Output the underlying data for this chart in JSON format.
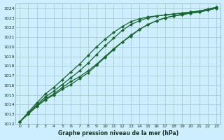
{
  "title": "Graphe pression niveau de la mer (hPa)",
  "bg_color": "#cceeff",
  "grid_color": "#aacccc",
  "line_color": "#1a6630",
  "xlim": [
    -0.5,
    23.5
  ],
  "ylim": [
    1012,
    1024.5
  ],
  "yticks": [
    1012,
    1013,
    1014,
    1015,
    1016,
    1017,
    1018,
    1019,
    1020,
    1021,
    1022,
    1023,
    1024
  ],
  "xticks": [
    0,
    1,
    2,
    3,
    4,
    5,
    6,
    7,
    8,
    9,
    10,
    11,
    12,
    13,
    14,
    15,
    16,
    17,
    18,
    19,
    20,
    21,
    22,
    23
  ],
  "lines": [
    [
      1012.2,
      1013.1,
      1013.9,
      1014.6,
      1015.1,
      1015.8,
      1016.4,
      1016.9,
      1017.5,
      1018.2,
      1019.0,
      1019.8,
      1020.5,
      1021.2,
      1021.8,
      1022.3,
      1022.7,
      1023.0,
      1023.2,
      1023.4,
      1023.5,
      1023.6,
      1023.8,
      1024.0
    ],
    [
      1012.2,
      1013.0,
      1013.8,
      1014.5,
      1015.0,
      1015.6,
      1016.1,
      1016.7,
      1017.3,
      1018.1,
      1018.9,
      1019.7,
      1020.5,
      1021.1,
      1021.8,
      1022.3,
      1022.7,
      1023.0,
      1023.2,
      1023.3,
      1023.5,
      1023.6,
      1023.8,
      1024.0
    ],
    [
      1012.2,
      1013.1,
      1014.0,
      1014.8,
      1015.4,
      1016.1,
      1016.8,
      1017.5,
      1018.3,
      1019.2,
      1020.1,
      1020.9,
      1021.7,
      1022.3,
      1022.7,
      1023.0,
      1023.2,
      1023.3,
      1023.4,
      1023.5,
      1023.6,
      1023.7,
      1023.9,
      1024.1
    ],
    [
      1012.2,
      1013.2,
      1014.2,
      1015.1,
      1015.8,
      1016.6,
      1017.4,
      1018.2,
      1019.1,
      1020.0,
      1020.8,
      1021.5,
      1022.1,
      1022.6,
      1022.9,
      1023.1,
      1023.2,
      1023.3,
      1023.4,
      1023.5,
      1023.6,
      1023.7,
      1023.9,
      1024.1
    ]
  ]
}
